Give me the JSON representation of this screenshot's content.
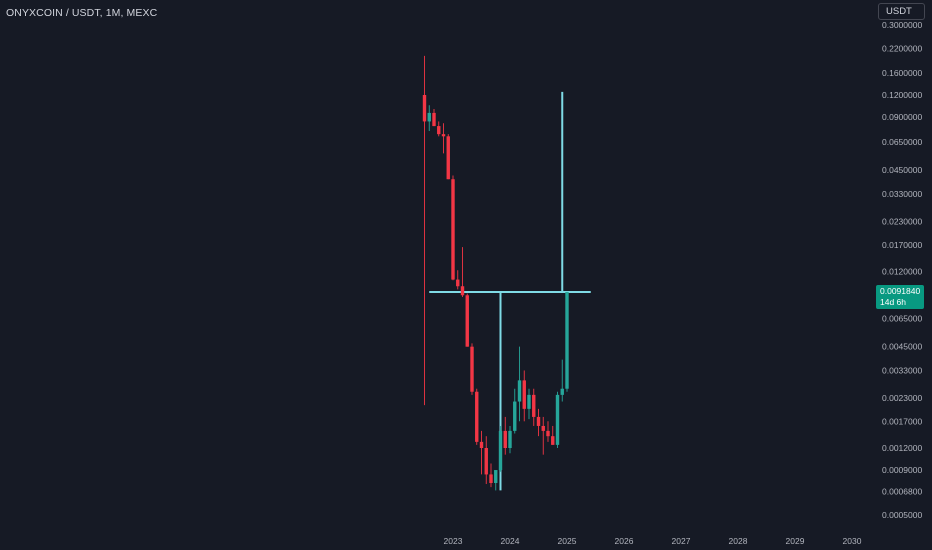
{
  "header": {
    "symbol_title": "ONYXCOIN / USDT, 1M, MEXC",
    "currency_button": "USDT"
  },
  "price_badge": {
    "price": "0.0091840",
    "countdown": "14d 6h"
  },
  "colors": {
    "background": "#161a25",
    "up": "#26a69a",
    "down": "#f23645",
    "annotation": "#7fdbe6",
    "badge": "#089981"
  },
  "chart_data": {
    "type": "candlestick",
    "title": "ONYXCOIN / USDT, 1M, MEXC",
    "y_scale": "log",
    "y_ticks": [
      "0.3000000",
      "0.2200000",
      "0.1600000",
      "0.1200000",
      "0.0900000",
      "0.0650000",
      "0.0450000",
      "0.0330000",
      "0.0230000",
      "0.0170000",
      "0.0120000",
      "0.0065000",
      "0.0045000",
      "0.0033000",
      "0.0023000",
      "0.0017000",
      "0.0012000",
      "0.0009000",
      "0.0006800",
      "0.0005000"
    ],
    "x_ticks": [
      "2023",
      "2024",
      "2025",
      "2026",
      "2027",
      "2028",
      "2029",
      "2030"
    ],
    "last_price": 0.009184,
    "candles": [
      {
        "month": "2022-07",
        "o": 0.12,
        "h": 0.2,
        "l": 0.0021,
        "c": 0.085,
        "dir": "down"
      },
      {
        "month": "2022-08",
        "o": 0.085,
        "h": 0.105,
        "l": 0.075,
        "c": 0.095,
        "dir": "up"
      },
      {
        "month": "2022-09",
        "o": 0.095,
        "h": 0.1,
        "l": 0.08,
        "c": 0.08,
        "dir": "down"
      },
      {
        "month": "2022-10",
        "o": 0.08,
        "h": 0.085,
        "l": 0.07,
        "c": 0.072,
        "dir": "down"
      },
      {
        "month": "2022-11",
        "o": 0.072,
        "h": 0.083,
        "l": 0.056,
        "c": 0.07,
        "dir": "down"
      },
      {
        "month": "2022-12",
        "o": 0.07,
        "h": 0.072,
        "l": 0.04,
        "c": 0.04,
        "dir": "down"
      },
      {
        "month": "2023-01",
        "o": 0.04,
        "h": 0.042,
        "l": 0.0107,
        "c": 0.0108,
        "dir": "down"
      },
      {
        "month": "2023-02",
        "o": 0.0108,
        "h": 0.0122,
        "l": 0.0095,
        "c": 0.0099,
        "dir": "down"
      },
      {
        "month": "2023-03",
        "o": 0.0099,
        "h": 0.0165,
        "l": 0.0086,
        "c": 0.0088,
        "dir": "down"
      },
      {
        "month": "2023-04",
        "o": 0.0088,
        "h": 0.009,
        "l": 0.0045,
        "c": 0.0045,
        "dir": "down"
      },
      {
        "month": "2023-05",
        "o": 0.0045,
        "h": 0.0047,
        "l": 0.0024,
        "c": 0.0025,
        "dir": "down"
      },
      {
        "month": "2023-06",
        "o": 0.0025,
        "h": 0.0026,
        "l": 0.00125,
        "c": 0.0013,
        "dir": "down"
      },
      {
        "month": "2023-07",
        "o": 0.0013,
        "h": 0.0015,
        "l": 0.00085,
        "c": 0.0012,
        "dir": "down"
      },
      {
        "month": "2023-08",
        "o": 0.0012,
        "h": 0.0014,
        "l": 0.00075,
        "c": 0.00085,
        "dir": "down"
      },
      {
        "month": "2023-09",
        "o": 0.00085,
        "h": 0.00098,
        "l": 0.00072,
        "c": 0.00076,
        "dir": "down"
      },
      {
        "month": "2023-10",
        "o": 0.00076,
        "h": 0.0009,
        "l": 0.00069,
        "c": 0.0009,
        "dir": "up"
      },
      {
        "month": "2023-11",
        "o": 0.0009,
        "h": 0.0016,
        "l": 0.00088,
        "c": 0.0015,
        "dir": "up"
      },
      {
        "month": "2023-12",
        "o": 0.0015,
        "h": 0.0018,
        "l": 0.0011,
        "c": 0.0012,
        "dir": "down"
      },
      {
        "month": "2024-01",
        "o": 0.0012,
        "h": 0.0016,
        "l": 0.00112,
        "c": 0.0015,
        "dir": "up"
      },
      {
        "month": "2024-02",
        "o": 0.0015,
        "h": 0.0026,
        "l": 0.00145,
        "c": 0.0022,
        "dir": "up"
      },
      {
        "month": "2024-03",
        "o": 0.0022,
        "h": 0.0045,
        "l": 0.0017,
        "c": 0.0029,
        "dir": "up"
      },
      {
        "month": "2024-04",
        "o": 0.0029,
        "h": 0.0033,
        "l": 0.0017,
        "c": 0.002,
        "dir": "down"
      },
      {
        "month": "2024-05",
        "o": 0.002,
        "h": 0.0026,
        "l": 0.00175,
        "c": 0.0024,
        "dir": "up"
      },
      {
        "month": "2024-06",
        "o": 0.0024,
        "h": 0.0026,
        "l": 0.0016,
        "c": 0.0018,
        "dir": "down"
      },
      {
        "month": "2024-07",
        "o": 0.0018,
        "h": 0.002,
        "l": 0.0014,
        "c": 0.0016,
        "dir": "down"
      },
      {
        "month": "2024-08",
        "o": 0.0016,
        "h": 0.0018,
        "l": 0.0011,
        "c": 0.0015,
        "dir": "down"
      },
      {
        "month": "2024-09",
        "o": 0.0015,
        "h": 0.0017,
        "l": 0.0013,
        "c": 0.0014,
        "dir": "down"
      },
      {
        "month": "2024-10",
        "o": 0.0014,
        "h": 0.0016,
        "l": 0.00125,
        "c": 0.00125,
        "dir": "down"
      },
      {
        "month": "2024-11",
        "o": 0.00125,
        "h": 0.0025,
        "l": 0.0012,
        "c": 0.0024,
        "dir": "up"
      },
      {
        "month": "2024-12",
        "o": 0.0024,
        "h": 0.0038,
        "l": 0.0022,
        "c": 0.0026,
        "dir": "up"
      },
      {
        "month": "2025-01",
        "o": 0.0026,
        "h": 0.0092,
        "l": 0.0025,
        "c": 0.009184,
        "dir": "up"
      }
    ],
    "annotations": [
      {
        "type": "horizontal_segment",
        "price": 0.009184,
        "from": "2022-08",
        "to": "2025-06"
      },
      {
        "type": "vertical_segment",
        "month": "2023-11",
        "from_price": 0.00069,
        "to_price": 0.009184
      },
      {
        "type": "vertical_segment",
        "month": "2024-12",
        "from_price": 0.009184,
        "to_price": 0.125
      }
    ]
  }
}
